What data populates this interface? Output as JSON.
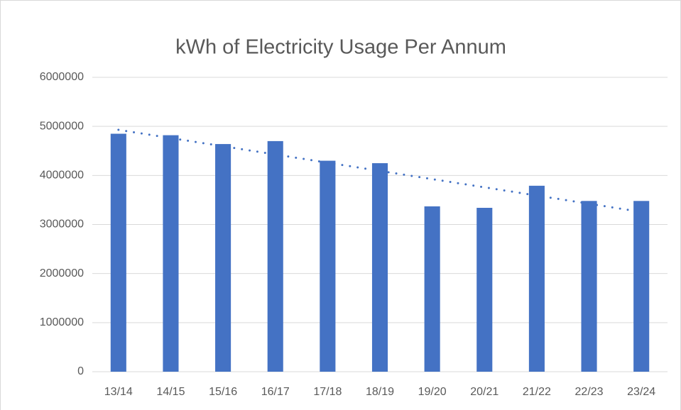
{
  "chart_data": {
    "type": "bar",
    "title": "kWh of Electricity Usage Per Annum",
    "categories": [
      "13/14",
      "14/15",
      "15/16",
      "16/17",
      "17/18",
      "18/19",
      "19/20",
      "20/21",
      "21/22",
      "22/23",
      "23/24"
    ],
    "values": [
      4850000,
      4820000,
      4640000,
      4700000,
      4300000,
      4250000,
      3370000,
      3340000,
      3790000,
      3480000,
      3480000
    ],
    "color": "#4472c4",
    "ylim": [
      0,
      6000000
    ],
    "yticks": [
      0,
      1000000,
      2000000,
      3000000,
      4000000,
      5000000,
      6000000
    ],
    "grid": true,
    "trendline": "linear"
  }
}
